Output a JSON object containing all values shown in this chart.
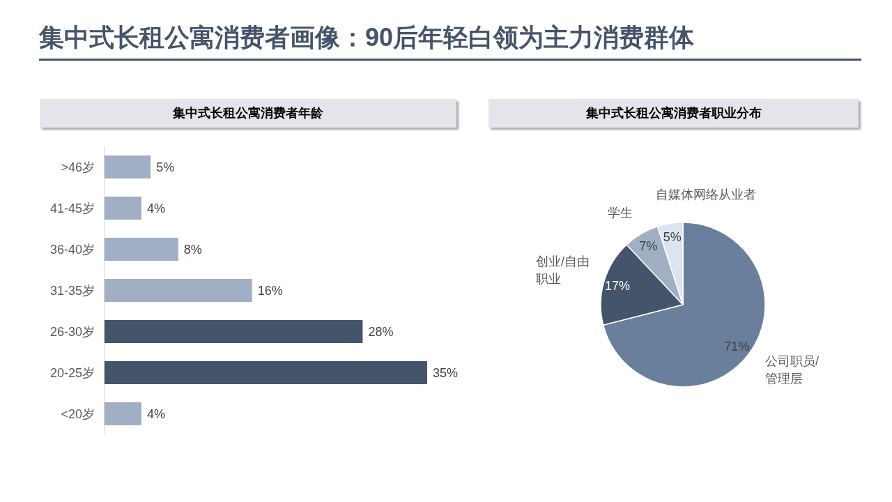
{
  "chart_data": [
    {
      "type": "bar",
      "orientation": "horizontal",
      "title": "集中式长租公寓消费者画像：90后年轻白领为主力消费群体",
      "subtitle": "集中式长租公寓消费者年龄",
      "categories": [
        ">46岁",
        "41-45岁",
        "36-40岁",
        "31-35岁",
        "26-30岁",
        "20-25岁",
        "<20岁"
      ],
      "values": [
        5,
        4,
        8,
        16,
        28,
        35,
        4
      ],
      "colors": [
        "#a0afc3",
        "#a0afc3",
        "#a0afc3",
        "#a0afc3",
        "#44546a",
        "#44546a",
        "#a0afc3"
      ],
      "value_labels": [
        "5%",
        "4%",
        "8%",
        "16%",
        "28%",
        "35%",
        "4%"
      ]
    },
    {
      "type": "pie",
      "title": "集中式长租公寓消费者职业分布",
      "categories": [
        "公司职员/管理层",
        "创业/自由职业",
        "学生",
        "自媒体网络从业者"
      ],
      "values": [
        71,
        17,
        7,
        5
      ],
      "colors": [
        "#6a7f9c",
        "#44546a",
        "#a0afc3",
        "#dde4f0"
      ],
      "value_labels": [
        "71%",
        "17%",
        "7%",
        "5%"
      ]
    }
  ]
}
